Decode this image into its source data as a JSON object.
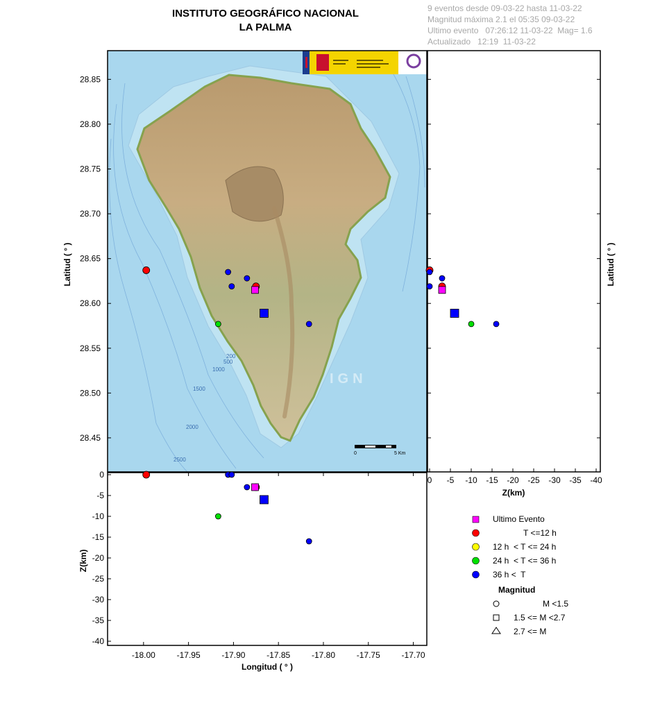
{
  "header": {
    "title_line1": "INSTITUTO GEOGRÁFICO NACIONAL",
    "title_line2": "LA PALMA",
    "info_line1": "9 eventos desde 09-03-22 hasta 11-03-22",
    "info_line2": "Magnitud máxima 2.1 el 05:35 09-03-22",
    "info_line3": "Ultimo evento   07:26:12 11-03-22  Mag= 1.6",
    "info_line4": "Actualizado   12:19  11-03-22"
  },
  "map": {
    "watermark": "IGN",
    "scale_start": "0",
    "scale_end": "5 Km",
    "depth_labels": [
      "200",
      "500",
      "1000",
      "1500",
      "2000",
      "2500"
    ],
    "sea_color": "#a9d7ee",
    "island_color": "#c9b58e"
  },
  "colors": {
    "last_event": "#ff00ff",
    "t12": "#ff0000",
    "t24": "#ffff00",
    "t36": "#00e000",
    "t_older": "#0000ff"
  },
  "legend": {
    "last_event": "Ultimo Evento",
    "t12": "T <=12 h",
    "t24": "12 h  < T <= 24 h",
    "t36": "24 h  < T <= 36 h",
    "t_older": "36 h <  T",
    "magnitude_title": "Magnitud",
    "m1": "M <1.5",
    "m2": "1.5 <= M <2.7",
    "m3": "2.7 <= M"
  },
  "chart_data": {
    "type": "scatter",
    "xlabel": "Longitud ( ° )",
    "ylabel": "Latitud ( ° )",
    "zlabel": "Z(km)",
    "xlim": [
      -18.04,
      -17.685
    ],
    "ylim": [
      28.412,
      28.882
    ],
    "zlim": [
      -41,
      0.5
    ],
    "xticks": [
      -18.0,
      -17.95,
      -17.9,
      -17.85,
      -17.8,
      -17.75,
      -17.7
    ],
    "xtick_labels": [
      "-18.00",
      "-17.95",
      "-17.90",
      "-17.85",
      "-17.80",
      "-17.75",
      "-17.70"
    ],
    "yticks": [
      28.45,
      28.5,
      28.55,
      28.6,
      28.65,
      28.7,
      28.75,
      28.8,
      28.85
    ],
    "ytick_labels": [
      "28.45",
      "28.50",
      "28.55",
      "28.60",
      "28.65",
      "28.70",
      "28.75",
      "28.80",
      "28.85"
    ],
    "zticks": [
      0,
      -5,
      -10,
      -15,
      -20,
      -25,
      -30,
      -35,
      -40
    ],
    "ztick_labels": [
      "0",
      "-5",
      "-10",
      "-15",
      "-20",
      "-25",
      "-30",
      "-35",
      "-40"
    ],
    "events": [
      {
        "lon": -17.997,
        "lat": 28.637,
        "depth": 0,
        "class": "t12",
        "shape": "circle"
      },
      {
        "lon": -17.875,
        "lat": 28.619,
        "depth": -3,
        "class": "t12",
        "shape": "circle"
      },
      {
        "lon": -17.906,
        "lat": 28.635,
        "depth": 0,
        "class": "t_older",
        "shape": "circle"
      },
      {
        "lon": -17.902,
        "lat": 28.619,
        "depth": 0,
        "class": "t_older",
        "shape": "circle"
      },
      {
        "lon": -17.885,
        "lat": 28.628,
        "depth": -3,
        "class": "t_older",
        "shape": "circle"
      },
      {
        "lon": -17.866,
        "lat": 28.589,
        "depth": -6,
        "class": "t_older",
        "shape": "square"
      },
      {
        "lon": -17.917,
        "lat": 28.577,
        "depth": -10,
        "class": "t36",
        "shape": "circle"
      },
      {
        "lon": -17.816,
        "lat": 28.577,
        "depth": -16,
        "class": "t_older",
        "shape": "circle"
      },
      {
        "lon": -17.876,
        "lat": 28.615,
        "depth": -3,
        "class": "last_event",
        "shape": "square"
      }
    ]
  }
}
